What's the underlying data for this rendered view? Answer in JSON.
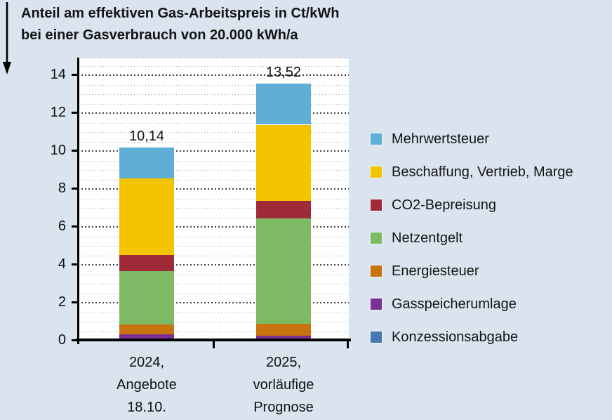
{
  "page": {
    "background_color": "#dae4ee"
  },
  "header": {
    "title": "Anteil am effektiven Gas-Arbeitspreis in Ct/kWh\nbei einer Gasverbrauch von 20.000 kWh/a",
    "arrow_icon": "down-arrow"
  },
  "chart_data": {
    "type": "bar",
    "stacked": true,
    "title": "Anteil am effektiven Gas-Arbeitspreis in Ct/kWh bei einer Gasverbrauch von 20.000 kWh/a",
    "unit": "Ct/kWh",
    "categories": [
      "2024,\nAngebote\n18.10.",
      "2025,\nvorläufige\nPrognose"
    ],
    "totals": [
      10.14,
      13.52
    ],
    "total_labels": [
      "10,14",
      "13,52"
    ],
    "series_note": "stack order bottom-to-top; values estimated from bar segment heights, totals are labeled in chart",
    "series": [
      {
        "name": "Konzessionsabgabe",
        "color": "#4478b0",
        "values": [
          0.09,
          0.09
        ]
      },
      {
        "name": "Gasspeicherumlage",
        "color": "#7b3096",
        "values": [
          0.19,
          0.15
        ]
      },
      {
        "name": "Energiesteuer",
        "color": "#c87210",
        "values": [
          0.55,
          0.61
        ]
      },
      {
        "name": "Netzentgelt",
        "color": "#7dba63",
        "values": [
          2.8,
          5.55
        ]
      },
      {
        "name": "CO2-Bepreisung",
        "color": "#a02b38",
        "values": [
          0.85,
          0.95
        ]
      },
      {
        "name": "Beschaffung, Vertrieb, Marge",
        "color": "#f2c500",
        "values": [
          4.04,
          4.01
        ]
      },
      {
        "name": "Mehrwertsteuer",
        "color": "#5eaed6",
        "values": [
          1.62,
          2.16
        ]
      }
    ],
    "legend_order_top_to_bottom": [
      "Mehrwertsteuer",
      "Beschaffung, Vertrieb, Marge",
      "CO2-Bepreisung",
      "Netzentgelt",
      "Energiesteuer",
      "Gasspeicherumlage",
      "Konzessionsabgabe"
    ],
    "y_axis": {
      "min": 0,
      "max": 14.9,
      "major_step": 2,
      "minor_step": 0.5,
      "tick_labels": [
        "0",
        "2",
        "4",
        "6",
        "8",
        "10",
        "12",
        "14"
      ]
    },
    "xlabel": "",
    "ylabel": "",
    "grid": "horizontal dotted, minor every 0.5 and major every 2",
    "legend_position": "right",
    "plot_background": "#ffffff"
  }
}
